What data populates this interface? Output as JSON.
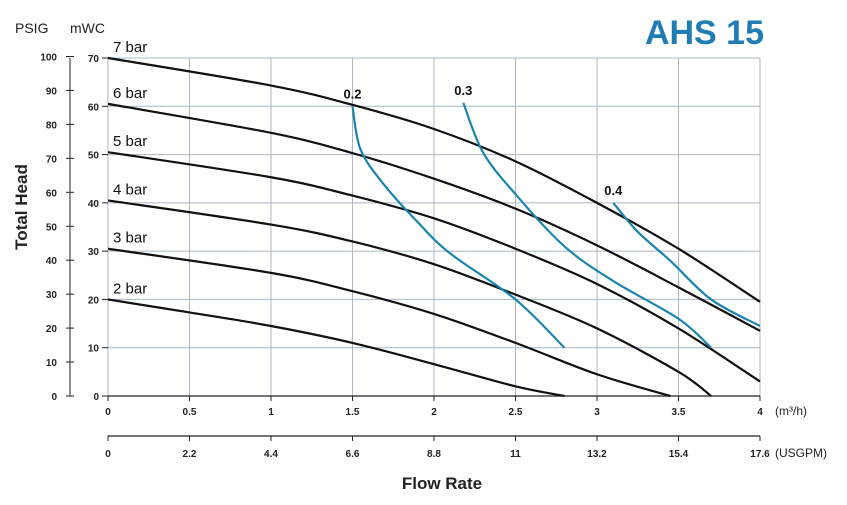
{
  "chart_data": {
    "type": "line",
    "title": "AHS 15",
    "title_color": "#1f7db3",
    "ylabel": "Total Head",
    "xlabel": "Flow Rate",
    "y_units": {
      "psig": "PSIG",
      "mwc": "mWC"
    },
    "x_units": {
      "m3h": "(m³/h)",
      "usgpm": "(USGPM)"
    },
    "xlim": [
      0,
      4
    ],
    "ylim": [
      0,
      70
    ],
    "x_ticks_m3h": [
      "0",
      "0.5",
      "1",
      "1.5",
      "2",
      "2.5",
      "3",
      "3.5",
      "4"
    ],
    "x_ticks_usgpm": [
      "0",
      "2.2",
      "4.4",
      "6.6",
      "8.8",
      "11",
      "13.2",
      "15.4",
      "17.6"
    ],
    "y_ticks_mwc": [
      "70",
      "60",
      "50",
      "40",
      "30",
      "20",
      "10",
      "0"
    ],
    "y_ticks_psig": [
      "100",
      "90",
      "80",
      "70",
      "60",
      "50",
      "40",
      "30",
      "20",
      "10",
      "0"
    ],
    "grid": true,
    "series": [
      {
        "name": "7 bar",
        "color": "#111111",
        "x": [
          0,
          1,
          1.5,
          2,
          2.5,
          3,
          3.5,
          4
        ],
        "y": [
          70,
          64.3,
          60.3,
          55.3,
          48.6,
          40,
          30.5,
          19.5
        ]
      },
      {
        "name": "6 bar",
        "color": "#111111",
        "x": [
          0,
          1,
          1.5,
          2,
          2.5,
          3,
          3.5,
          4
        ],
        "y": [
          60.5,
          54.5,
          50.3,
          45,
          38.8,
          31.2,
          22.5,
          13.5
        ]
      },
      {
        "name": "5 bar",
        "color": "#111111",
        "x": [
          0,
          1,
          1.5,
          2,
          2.5,
          3,
          3.5,
          4
        ],
        "y": [
          50.5,
          45.3,
          41.5,
          36.8,
          30.5,
          23.2,
          14,
          3
        ]
      },
      {
        "name": "4 bar",
        "color": "#111111",
        "x": [
          0,
          1,
          1.5,
          2,
          2.5,
          3,
          3.5,
          3.7
        ],
        "y": [
          40.5,
          35.5,
          32,
          27.3,
          21,
          14,
          5,
          0
        ]
      },
      {
        "name": "3 bar",
        "color": "#111111",
        "x": [
          0,
          1,
          1.5,
          2,
          2.5,
          3,
          3.45
        ],
        "y": [
          30.5,
          25.5,
          21.7,
          17,
          11,
          4.5,
          0
        ]
      },
      {
        "name": "2 bar",
        "color": "#111111",
        "x": [
          0,
          0.5,
          1,
          1.5,
          2,
          2.5,
          2.8
        ],
        "y": [
          20,
          17.3,
          14.5,
          11,
          6.6,
          2,
          0
        ]
      }
    ],
    "air_curves": [
      {
        "name": "0.2",
        "color": "#1a84b0",
        "x": [
          1.5,
          1.55,
          1.7,
          1.9,
          2.1,
          2.5,
          2.8
        ],
        "y": [
          60,
          51,
          43.5,
          36,
          29.5,
          20,
          10
        ]
      },
      {
        "name": "0.3",
        "color": "#1a84b0",
        "x": [
          2.18,
          2.3,
          2.5,
          2.8,
          3.1,
          3.5,
          3.7
        ],
        "y": [
          60.7,
          50.5,
          41.8,
          31,
          23.8,
          16,
          10
        ]
      },
      {
        "name": "0.4",
        "color": "#1a84b0",
        "x": [
          3.1,
          3.25,
          3.45,
          3.7,
          4
        ],
        "y": [
          40,
          34,
          28,
          20,
          14.5
        ]
      }
    ]
  }
}
